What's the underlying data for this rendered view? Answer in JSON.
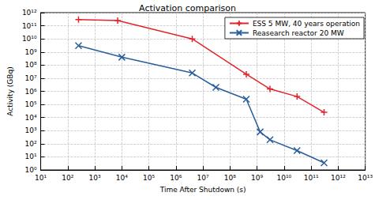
{
  "chart_data": {
    "type": "line",
    "title": "Activation comparison",
    "x_label": "Time After Shutdown (s)",
    "y_label": "Activity (GBq)",
    "log": true,
    "grid": true,
    "legend": "upper right",
    "xlim": [
      10,
      10000000000000
    ],
    "ylim": [
      1,
      1000000000000
    ],
    "xticks": [
      {
        "value": 10,
        "label": "10¹"
      },
      {
        "value": 100,
        "label": "10²"
      },
      {
        "value": 1000,
        "label": "10³"
      },
      {
        "value": 10000,
        "label": "10⁴"
      },
      {
        "value": 100000,
        "label": "10⁵"
      },
      {
        "value": 1000000,
        "label": "10⁶"
      },
      {
        "value": 10000000,
        "label": "10⁷"
      },
      {
        "value": 100000000,
        "label": "10⁸"
      },
      {
        "value": 1000000000,
        "label": "10⁹"
      },
      {
        "value": 10000000000,
        "label": "10¹⁰"
      },
      {
        "value": 100000000000,
        "label": "10¹¹"
      },
      {
        "value": 1000000000000,
        "label": "10¹²"
      },
      {
        "value": 10000000000000,
        "label": "10¹³"
      }
    ],
    "yticks": [
      {
        "value": 1,
        "label": "10⁰"
      },
      {
        "value": 10,
        "label": "10¹"
      },
      {
        "value": 100,
        "label": "10²"
      },
      {
        "value": 1000,
        "label": "10³"
      },
      {
        "value": 10000,
        "label": "10⁴"
      },
      {
        "value": 100000,
        "label": "10⁵"
      },
      {
        "value": 1000000,
        "label": "10⁶"
      },
      {
        "value": 10000000,
        "label": "10⁷"
      },
      {
        "value": 100000000,
        "label": "10⁸"
      },
      {
        "value": 1000000000,
        "label": "10⁹"
      },
      {
        "value": 10000000000,
        "label": "10¹⁰"
      },
      {
        "value": 100000000000,
        "label": "10¹¹"
      },
      {
        "value": 1000000000000,
        "label": "10¹²"
      }
    ],
    "series": [
      {
        "name": "ESS 5 MW, 40 years operation",
        "color": "#e3242b",
        "marker": "plus",
        "x": [
          250,
          7000,
          4000000,
          400000000,
          3000000000,
          30000000000,
          300000000000
        ],
        "values": [
          300000000000,
          250000000000,
          10000000000,
          20000000,
          1500000,
          400000,
          25000
        ]
      },
      {
        "name": "Reasearch reactor 20 MW",
        "color": "#2a5d9c",
        "marker": "x",
        "x": [
          250,
          10000,
          4000000,
          30000000,
          400000000,
          1300000000,
          3000000000,
          30000000000,
          300000000000
        ],
        "values": [
          3000000000,
          400000000,
          25000000,
          2000000,
          250000,
          800,
          200,
          30,
          3.5
        ]
      }
    ]
  }
}
